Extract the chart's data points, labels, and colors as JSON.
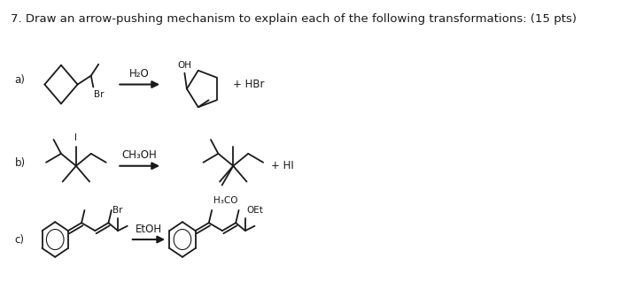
{
  "title": "7. Draw an arrow-pushing mechanism to explain each of the following transformations: (15 pts)",
  "title_fontsize": 9.5,
  "bg_color": "#ffffff",
  "text_color": "#1a1a1a",
  "fig_width": 7.0,
  "fig_height": 3.18,
  "dpi": 100,
  "labels": {
    "a": "a)",
    "b": "b)",
    "c": "c)",
    "reagent_a": "H₂O",
    "reagent_b": "CH₃OH",
    "reagent_c": "EtOH",
    "byproduct_a": "+ HBr",
    "byproduct_b": "+ HI",
    "br_a": "Br",
    "br_c": "Br",
    "oh": "OH",
    "h3co": "H₃CO",
    "oet": "OEt",
    "I": "I"
  }
}
